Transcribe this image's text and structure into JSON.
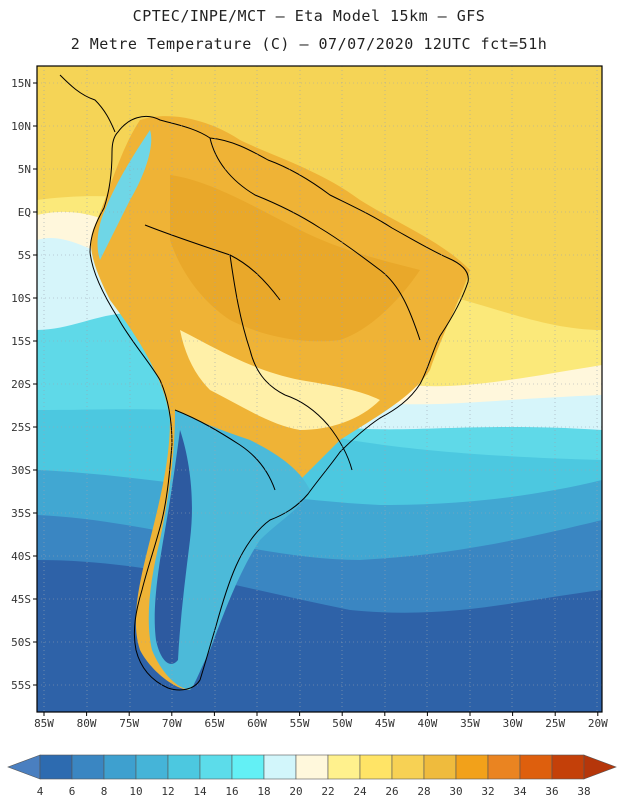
{
  "header": {
    "line1": "CPTEC/INPE/MCT –  Eta Model 15km – GFS",
    "line2": "2 Metre Temperature (C) – 07/07/2020 12UTC fct=51h"
  },
  "lat_ticks": [
    "15N",
    "10N",
    "5N",
    "EQ",
    "5S",
    "10S",
    "15S",
    "20S",
    "25S",
    "30S",
    "35S",
    "40S",
    "45S",
    "50S",
    "55S"
  ],
  "lon_ticks": [
    "85W",
    "80W",
    "75W",
    "70W",
    "65W",
    "60W",
    "55W",
    "50W",
    "45W",
    "40W",
    "35W",
    "30W",
    "25W",
    "20W"
  ],
  "colorbar": {
    "labels": [
      "4",
      "6",
      "8",
      "10",
      "12",
      "14",
      "16",
      "18",
      "20",
      "22",
      "24",
      "26",
      "28",
      "30",
      "32",
      "34",
      "36",
      "38"
    ],
    "colors": [
      "#4a7fc0",
      "#2d6bb0",
      "#3a86c2",
      "#3ea0cf",
      "#45b4d8",
      "#4cc8e0",
      "#5cdcea",
      "#63f0f5",
      "#d2f6fb",
      "#fff8dc",
      "#fff18d",
      "#ffe466",
      "#f7d154",
      "#efbb3d",
      "#f2a11a",
      "#ea8421",
      "#de5f0d",
      "#c44009",
      "#b5360a"
    ]
  },
  "colors": {
    "cold": "#2e62a8",
    "cool": "#41a7d2",
    "mild": "#5fd3e4",
    "warm": "#f5d456",
    "hot": "#efb336",
    "border": "#000000"
  }
}
